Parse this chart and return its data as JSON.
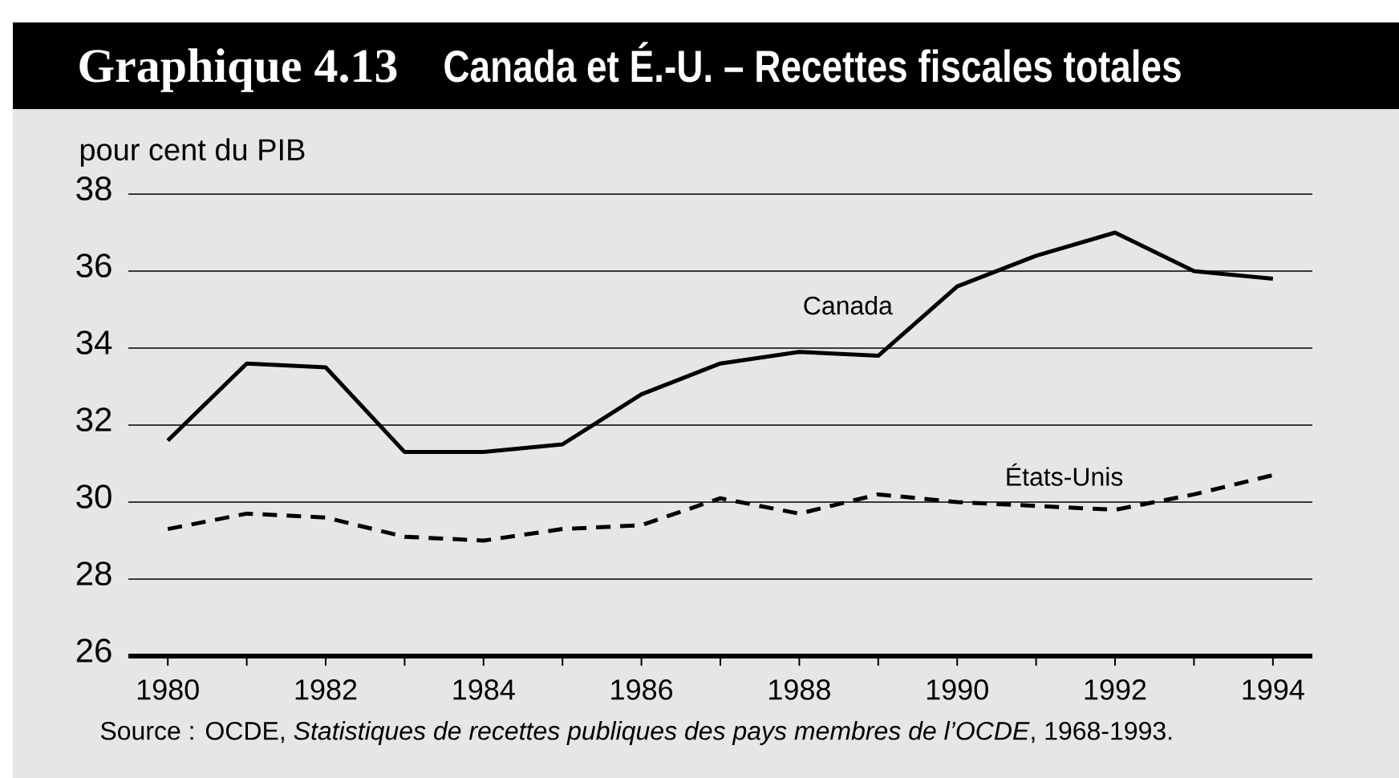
{
  "chart_data": {
    "type": "line",
    "title": "Graphique 4.13",
    "subtitle": "Canada et É.-U. – Recettes fiscales totales",
    "ylabel": "pour cent du PIB",
    "annotations": [
      "Source : OCDE, *Statistiques de recettes publiques des pays membres de l’OCDE*, 1968-1993."
    ],
    "x": [
      1980,
      1981,
      1982,
      1983,
      1984,
      1985,
      1986,
      1987,
      1988,
      1989,
      1990,
      1991,
      1992,
      1993,
      1994
    ],
    "series": [
      {
        "name": "Canada",
        "color": "#000000",
        "line_style": "solid",
        "values": [
          31.6,
          33.6,
          33.5,
          31.3,
          31.3,
          31.5,
          32.8,
          33.6,
          33.9,
          33.8,
          35.6,
          36.4,
          37.0,
          36.0,
          35.8
        ]
      },
      {
        "name": "États-Unis",
        "color": "#000000",
        "line_style": "dashed",
        "values": [
          29.3,
          29.7,
          29.6,
          29.1,
          29.0,
          29.3,
          29.4,
          30.1,
          29.7,
          30.2,
          30.0,
          29.9,
          29.8,
          30.2,
          30.7
        ]
      }
    ],
    "xlim": [
      1979.5,
      1994.5
    ],
    "xticks": [
      1980,
      {
        "value": 1981,
        "label": null
      },
      1982,
      {
        "value": 1983,
        "label": null
      },
      1984,
      {
        "value": 1985,
        "label": null
      },
      1986,
      {
        "value": 1987,
        "label": null
      },
      1988,
      {
        "value": 1989,
        "label": null
      },
      1990,
      {
        "value": 1991,
        "label": null
      },
      1992,
      {
        "value": 1993,
        "label": null
      },
      1994
    ],
    "ylim": [
      26,
      38
    ],
    "yticks": [
      26,
      28,
      30,
      32,
      34,
      36,
      38
    ],
    "grid": "y"
  }
}
